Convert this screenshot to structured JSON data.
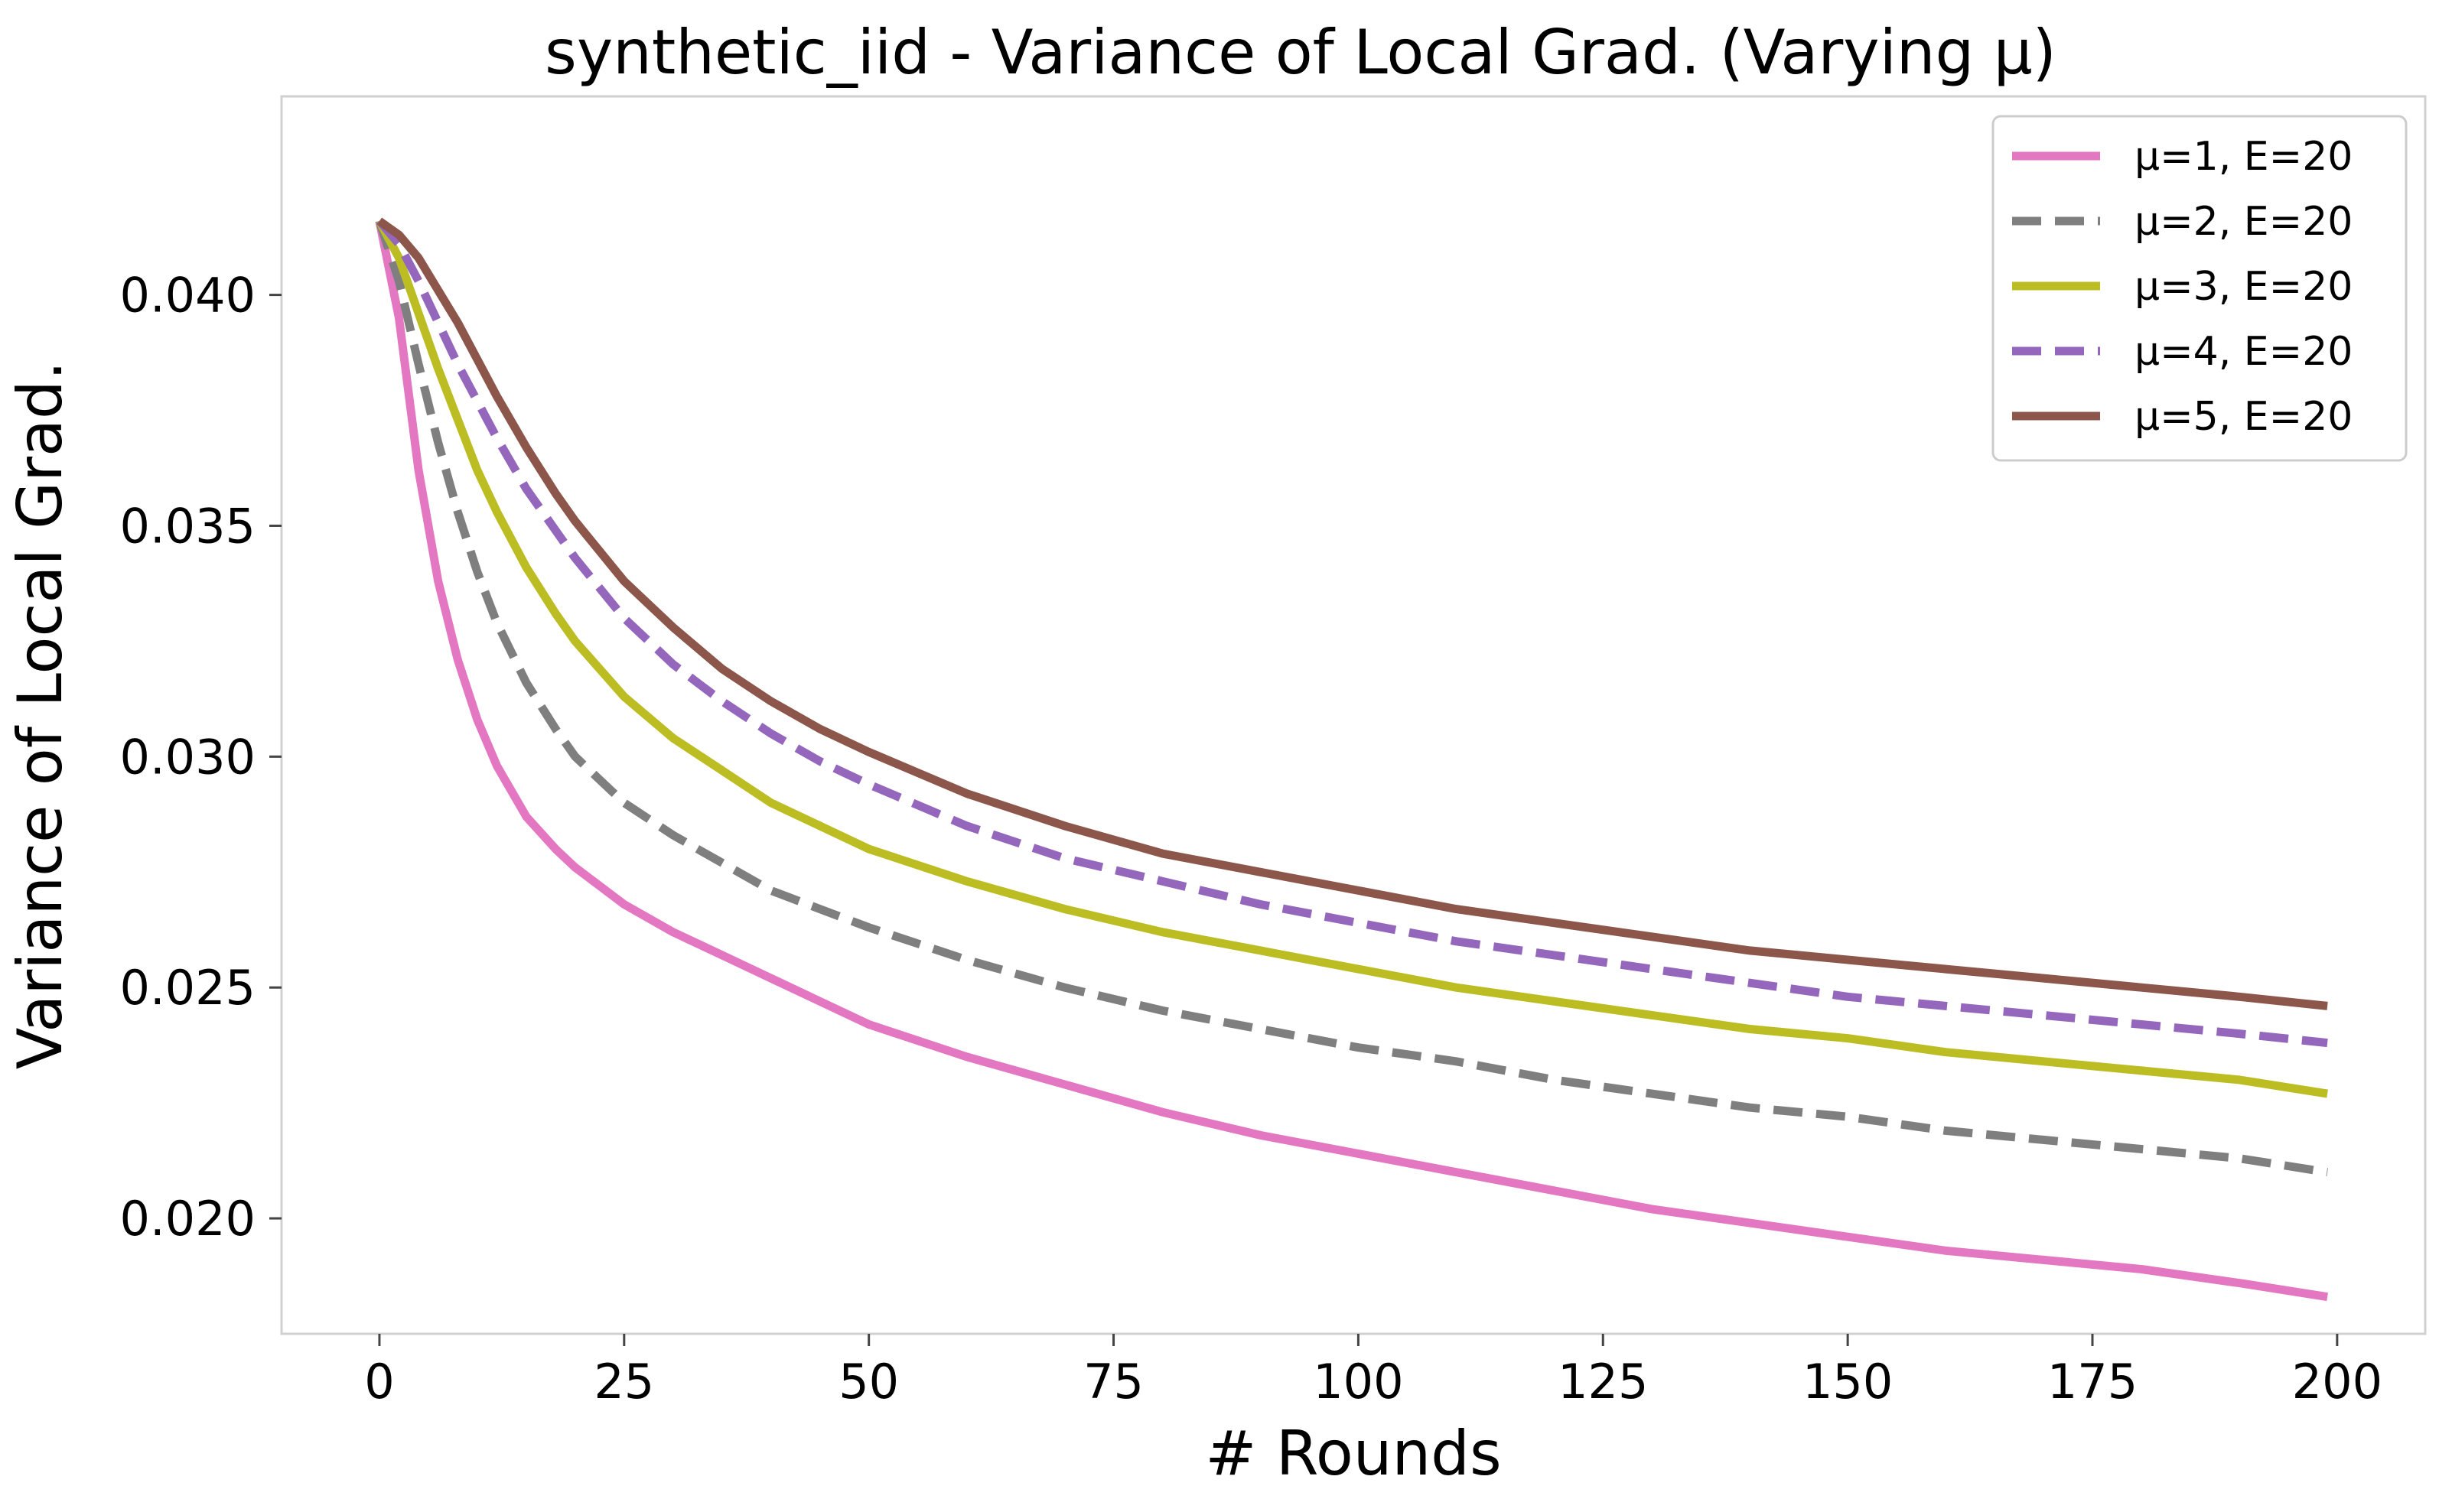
{
  "chart_data": {
    "type": "line",
    "title": "synthetic_iid - Variance of Local Grad. (Varying μ)",
    "xlabel": "# Rounds",
    "ylabel": "Variance of Local Grad.",
    "xlim": [
      -10,
      209
    ],
    "ylim": [
      0.0175,
      0.0443
    ],
    "xticks": [
      0,
      25,
      50,
      75,
      100,
      125,
      150,
      175,
      200
    ],
    "yticks": [
      0.02,
      0.025,
      0.03,
      0.035,
      0.04
    ],
    "xtick_labels": [
      "0",
      "25",
      "50",
      "75",
      "100",
      "125",
      "150",
      "175",
      "200"
    ],
    "ytick_labels": [
      "0.020",
      "0.025",
      "0.030",
      "0.035",
      "0.040"
    ],
    "grid": false,
    "legend_position": "top-right",
    "x": [
      0,
      2,
      4,
      6,
      8,
      10,
      12,
      15,
      18,
      20,
      25,
      30,
      35,
      40,
      45,
      50,
      60,
      70,
      80,
      90,
      100,
      110,
      120,
      130,
      140,
      150,
      160,
      170,
      180,
      190,
      199
    ],
    "series": [
      {
        "name": "μ=1, E=20",
        "color": "#e377c2",
        "dash": "solid",
        "values": [
          0.0416,
          0.0395,
          0.0362,
          0.0338,
          0.0321,
          0.0308,
          0.0298,
          0.0287,
          0.028,
          0.0276,
          0.0268,
          0.0262,
          0.0257,
          0.0252,
          0.0247,
          0.0242,
          0.0235,
          0.0229,
          0.0223,
          0.0218,
          0.0214,
          0.021,
          0.0206,
          0.0202,
          0.0199,
          0.0196,
          0.0193,
          0.0191,
          0.0189,
          0.0186,
          0.0183
        ]
      },
      {
        "name": "μ=2, E=20",
        "color": "#7f7f7f",
        "dash": "dashed",
        "values": [
          0.0416,
          0.0403,
          0.0385,
          0.0368,
          0.0353,
          0.034,
          0.0329,
          0.0316,
          0.0306,
          0.03,
          0.029,
          0.0283,
          0.0277,
          0.0271,
          0.0267,
          0.0263,
          0.0256,
          0.025,
          0.0245,
          0.0241,
          0.0237,
          0.0234,
          0.023,
          0.0227,
          0.0224,
          0.0222,
          0.0219,
          0.0217,
          0.0215,
          0.0213,
          0.021
        ]
      },
      {
        "name": "μ=3, E=20",
        "color": "#bcbd22",
        "dash": "solid",
        "values": [
          0.0416,
          0.0408,
          0.0396,
          0.0384,
          0.0373,
          0.0362,
          0.0353,
          0.0341,
          0.0331,
          0.0325,
          0.0313,
          0.0304,
          0.0297,
          0.029,
          0.0285,
          0.028,
          0.0273,
          0.0267,
          0.0262,
          0.0258,
          0.0254,
          0.025,
          0.0247,
          0.0244,
          0.0241,
          0.0239,
          0.0236,
          0.0234,
          0.0232,
          0.023,
          0.0227
        ]
      },
      {
        "name": "μ=4, E=20",
        "color": "#9467bd",
        "dash": "dashed",
        "values": [
          0.0416,
          0.0411,
          0.0403,
          0.0394,
          0.0385,
          0.0377,
          0.0369,
          0.0358,
          0.0349,
          0.0343,
          0.033,
          0.032,
          0.0312,
          0.0305,
          0.0299,
          0.0294,
          0.0285,
          0.0278,
          0.0273,
          0.0268,
          0.0264,
          0.026,
          0.0257,
          0.0254,
          0.0251,
          0.0248,
          0.0246,
          0.0244,
          0.0242,
          0.024,
          0.0238
        ]
      },
      {
        "name": "μ=5, E=20",
        "color": "#8c564b",
        "dash": "solid",
        "values": [
          0.0416,
          0.0413,
          0.0408,
          0.0401,
          0.0394,
          0.0386,
          0.0378,
          0.0367,
          0.0357,
          0.0351,
          0.0338,
          0.0328,
          0.0319,
          0.0312,
          0.0306,
          0.0301,
          0.0292,
          0.0285,
          0.0279,
          0.0275,
          0.0271,
          0.0267,
          0.0264,
          0.0261,
          0.0258,
          0.0256,
          0.0254,
          0.0252,
          0.025,
          0.0248,
          0.0246
        ]
      }
    ]
  }
}
